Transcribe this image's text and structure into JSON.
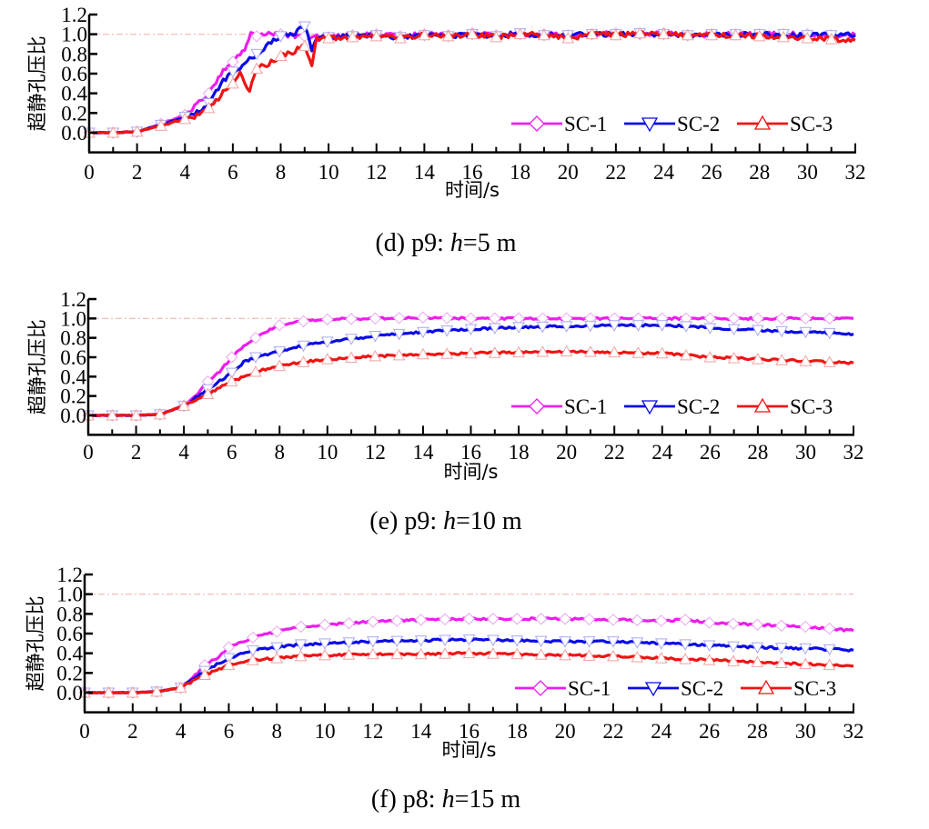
{
  "chart_data": [
    {
      "type": "line",
      "title": "",
      "caption": {
        "prefix": "(d) p9: ",
        "var": "h",
        "suffix": "=5 m"
      },
      "xlabel": "时间/s",
      "ylabel": "超静孔压比",
      "xlim": [
        0,
        32
      ],
      "ylim": [
        -0.2,
        1.2
      ],
      "xticks": [
        "0",
        "2",
        "4",
        "6",
        "8",
        "10",
        "12",
        "14",
        "16",
        "18",
        "20",
        "22",
        "24",
        "26",
        "28",
        "30",
        "32"
      ],
      "yticks": [
        "0.0",
        "0.2",
        "0.4",
        "0.6",
        "0.8",
        "1.0",
        "1.2"
      ],
      "reference_line": 1.0,
      "legend": [
        "SC-1",
        "SC-2",
        "SC-3"
      ],
      "legend_position": "lower-right",
      "series": [
        {
          "name": "SC-1",
          "color": "#ee1cee",
          "x": [
            0,
            1,
            2,
            3,
            4,
            4.5,
            5,
            5.5,
            6,
            6.5,
            6.75,
            7,
            7.5,
            8,
            8.5,
            9,
            9.5,
            10,
            11,
            12,
            13,
            14,
            15,
            16,
            17,
            18,
            19,
            20,
            21,
            22,
            23,
            24,
            25,
            26,
            27,
            28,
            29,
            30,
            31,
            32
          ],
          "y": [
            0,
            0,
            0.01,
            0.09,
            0.18,
            0.28,
            0.4,
            0.6,
            0.72,
            0.85,
            1.02,
            0.98,
            1.0,
            1.0,
            0.99,
            0.98,
            0.97,
            0.97,
            0.99,
            1.0,
            0.98,
            1.0,
            0.99,
            1.01,
            0.99,
            1.0,
            1.0,
            0.99,
            1.0,
            1.01,
            1.0,
            1.01,
            0.99,
            1.0,
            1.0,
            1.0,
            1.0,
            1.0,
            0.99,
            0.99
          ]
        },
        {
          "name": "SC-2",
          "color": "#0a0ae6",
          "x": [
            0,
            1,
            2,
            3,
            4,
            4.5,
            5,
            5.5,
            6,
            6.5,
            7,
            7.5,
            8,
            8.5,
            9,
            9.3,
            9.6,
            10,
            11,
            12,
            13,
            14,
            15,
            16,
            17,
            18,
            19,
            20,
            21,
            22,
            23,
            24,
            25,
            26,
            27,
            28,
            29,
            30,
            31,
            32
          ],
          "y": [
            0,
            0,
            0.01,
            0.08,
            0.16,
            0.2,
            0.3,
            0.5,
            0.62,
            0.7,
            0.8,
            0.9,
            0.98,
            1.0,
            1.08,
            0.85,
            0.98,
            0.97,
            0.98,
            0.99,
            0.97,
            0.99,
            0.98,
            1.0,
            0.98,
            1.01,
            0.99,
            0.99,
            1.0,
            1.0,
            1.01,
            1.0,
            0.99,
            1.0,
            1.0,
            1.0,
            1.0,
            0.99,
            0.99,
            0.99
          ]
        },
        {
          "name": "SC-3",
          "color": "#ee1414",
          "x": [
            0,
            1,
            2,
            3,
            4,
            4.5,
            5,
            5.5,
            6,
            6.3,
            6.7,
            7,
            7.5,
            8,
            8.5,
            9,
            9.3,
            9.5,
            10,
            11,
            12,
            13,
            14,
            15,
            16,
            17,
            18,
            19,
            20,
            21,
            22,
            23,
            24,
            25,
            26,
            27,
            28,
            29,
            30,
            31,
            32
          ],
          "y": [
            0,
            0,
            0.01,
            0.07,
            0.14,
            0.17,
            0.25,
            0.38,
            0.5,
            0.6,
            0.42,
            0.65,
            0.7,
            0.78,
            0.82,
            0.88,
            0.7,
            0.95,
            0.96,
            0.97,
            0.98,
            0.96,
            0.99,
            0.98,
            1.0,
            0.97,
            1.0,
            0.99,
            0.96,
            1.0,
            0.99,
            1.01,
            1.0,
            0.99,
            0.99,
            0.99,
            0.98,
            0.97,
            0.96,
            0.95,
            0.94
          ]
        }
      ]
    },
    {
      "type": "line",
      "title": "",
      "caption": {
        "prefix": "(e) p9: ",
        "var": "h",
        "suffix": "=10 m"
      },
      "xlabel": "时间/s",
      "ylabel": "超静孔压比",
      "xlim": [
        0,
        32
      ],
      "ylim": [
        -0.2,
        1.2
      ],
      "xticks": [
        "0",
        "2",
        "4",
        "6",
        "8",
        "10",
        "12",
        "14",
        "16",
        "18",
        "20",
        "22",
        "24",
        "26",
        "28",
        "30",
        "32"
      ],
      "yticks": [
        "0.0",
        "0.2",
        "0.4",
        "0.6",
        "0.8",
        "1.0",
        "1.2"
      ],
      "reference_line": 1.0,
      "legend": [
        "SC-1",
        "SC-2",
        "SC-3"
      ],
      "legend_position": "lower-right",
      "series": [
        {
          "name": "SC-1",
          "color": "#ee1cee",
          "x": [
            0,
            1,
            2,
            3,
            4,
            4.5,
            5,
            5.5,
            6,
            6.5,
            7,
            7.5,
            8,
            9,
            10,
            12,
            14,
            16,
            18,
            20,
            22,
            24,
            26,
            28,
            30,
            32
          ],
          "y": [
            0,
            0,
            0,
            0.01,
            0.1,
            0.2,
            0.35,
            0.45,
            0.6,
            0.72,
            0.8,
            0.87,
            0.93,
            0.97,
            0.99,
            1.0,
            1.01,
            1.0,
            1.0,
            1.0,
            1.0,
            1.0,
            1.0,
            1.0,
            1.0,
            1.0
          ]
        },
        {
          "name": "SC-2",
          "color": "#0a0ae6",
          "x": [
            0,
            1,
            2,
            3,
            4,
            5,
            6,
            6.5,
            7,
            8,
            9,
            10,
            12,
            14,
            16,
            18,
            20,
            22,
            24,
            25,
            26,
            28,
            30,
            32
          ],
          "y": [
            0,
            0,
            0,
            0.01,
            0.1,
            0.27,
            0.44,
            0.55,
            0.6,
            0.66,
            0.72,
            0.76,
            0.82,
            0.86,
            0.89,
            0.91,
            0.92,
            0.93,
            0.93,
            0.92,
            0.9,
            0.88,
            0.86,
            0.84
          ]
        },
        {
          "name": "SC-3",
          "color": "#ee1414",
          "x": [
            0,
            1,
            2,
            3,
            4,
            5,
            6,
            7,
            8,
            9,
            10,
            12,
            14,
            16,
            18,
            20,
            22,
            24,
            25,
            26,
            28,
            30,
            32
          ],
          "y": [
            0,
            0,
            0,
            0.01,
            0.1,
            0.22,
            0.35,
            0.45,
            0.51,
            0.55,
            0.58,
            0.61,
            0.63,
            0.64,
            0.65,
            0.66,
            0.65,
            0.64,
            0.62,
            0.6,
            0.58,
            0.56,
            0.54
          ]
        }
      ]
    },
    {
      "type": "line",
      "title": "",
      "caption": {
        "prefix": "(f) p8: ",
        "var": "h",
        "suffix": "=15 m"
      },
      "xlabel": "时间/s",
      "ylabel": "超静孔压比",
      "xlim": [
        0,
        32
      ],
      "ylim": [
        -0.2,
        1.2
      ],
      "xticks": [
        "0",
        "2",
        "4",
        "6",
        "8",
        "10",
        "12",
        "14",
        "16",
        "18",
        "20",
        "22",
        "24",
        "26",
        "28",
        "30",
        "32"
      ],
      "yticks": [
        "0.0",
        "0.2",
        "0.4",
        "0.6",
        "0.8",
        "1.0",
        "1.2"
      ],
      "reference_line": 1.0,
      "legend": [
        "SC-1",
        "SC-2",
        "SC-3"
      ],
      "legend_position": "lower-right",
      "series": [
        {
          "name": "SC-1",
          "color": "#ee1cee",
          "x": [
            0,
            1,
            2,
            3,
            4,
            4.5,
            5,
            5.5,
            6,
            7,
            8,
            9,
            10,
            12,
            14,
            16,
            18,
            20,
            22,
            24,
            25,
            26,
            28,
            30,
            32
          ],
          "y": [
            0,
            0,
            0,
            0.01,
            0.05,
            0.15,
            0.28,
            0.35,
            0.46,
            0.56,
            0.62,
            0.67,
            0.69,
            0.72,
            0.74,
            0.75,
            0.75,
            0.75,
            0.74,
            0.73,
            0.74,
            0.71,
            0.69,
            0.67,
            0.63
          ]
        },
        {
          "name": "SC-2",
          "color": "#0a0ae6",
          "x": [
            0,
            1,
            2,
            3,
            4,
            5,
            6,
            7,
            8,
            9,
            10,
            12,
            14,
            16,
            18,
            20,
            22,
            24,
            26,
            28,
            30,
            32
          ],
          "y": [
            0,
            0,
            0,
            0.01,
            0.05,
            0.22,
            0.35,
            0.43,
            0.46,
            0.49,
            0.5,
            0.52,
            0.53,
            0.54,
            0.53,
            0.52,
            0.52,
            0.5,
            0.48,
            0.46,
            0.45,
            0.43
          ]
        },
        {
          "name": "SC-3",
          "color": "#ee1414",
          "x": [
            0,
            1,
            2,
            3,
            4,
            5,
            6,
            7,
            8,
            9,
            10,
            12,
            14,
            16,
            18,
            20,
            22,
            24,
            26,
            28,
            30,
            32
          ],
          "y": [
            0,
            0,
            0,
            0.01,
            0.05,
            0.18,
            0.28,
            0.33,
            0.35,
            0.37,
            0.38,
            0.39,
            0.39,
            0.4,
            0.39,
            0.38,
            0.37,
            0.35,
            0.33,
            0.31,
            0.29,
            0.27
          ]
        }
      ]
    }
  ]
}
